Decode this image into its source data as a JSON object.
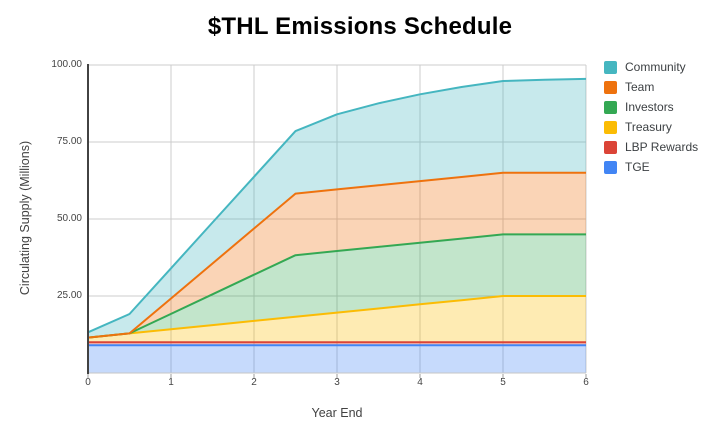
{
  "title": "$THL Emissions Schedule",
  "axes": {
    "y": {
      "title": "Circulating Supply (Millions)",
      "ticks": [
        {
          "label": "100.00",
          "value": 100
        },
        {
          "label": "75.00",
          "value": 75
        },
        {
          "label": "50.00",
          "value": 50
        },
        {
          "label": "25.00",
          "value": 25
        }
      ]
    },
    "x": {
      "title": "Year End",
      "ticks": [
        {
          "label": "0",
          "value": 0
        },
        {
          "label": "1",
          "value": 1
        },
        {
          "label": "2",
          "value": 2
        },
        {
          "label": "3",
          "value": 3
        },
        {
          "label": "4",
          "value": 4
        },
        {
          "label": "5",
          "value": 5
        },
        {
          "label": "6",
          "value": 6
        }
      ]
    }
  },
  "legend": {
    "position": "right",
    "items": [
      {
        "label": "Community",
        "color": "#45B6C0"
      },
      {
        "label": "Team",
        "color": "#EE720E"
      },
      {
        "label": "Investors",
        "color": "#34A853"
      },
      {
        "label": "Treasury",
        "color": "#FBBC04"
      },
      {
        "label": "LBP Rewards",
        "color": "#DB4437"
      },
      {
        "label": "TGE",
        "color": "#4285F4"
      }
    ]
  },
  "chart_data": {
    "type": "area",
    "stacked": true,
    "title": "$THL Emissions Schedule",
    "xlabel": "Year End",
    "ylabel": "Circulating Supply (Millions)",
    "xlim": [
      0,
      6
    ],
    "ylim": [
      0,
      100
    ],
    "grid": true,
    "legend_position": "right",
    "x": [
      0,
      0.5,
      1,
      1.5,
      2,
      2.5,
      3,
      3.5,
      4,
      4.5,
      5,
      5.5,
      6
    ],
    "series": [
      {
        "name": "TGE",
        "color": "#4285F4",
        "values": [
          9,
          9,
          9,
          9,
          9,
          9,
          9,
          9,
          9,
          9,
          9,
          9,
          9
        ]
      },
      {
        "name": "LBP Rewards",
        "color": "#DB4437",
        "values": [
          1,
          1,
          1,
          1,
          1,
          1,
          1,
          1,
          1,
          1,
          1,
          1,
          1
        ]
      },
      {
        "name": "Treasury",
        "color": "#FBBC04",
        "values": [
          1.5,
          2.85,
          4.2,
          5.55,
          6.9,
          8.25,
          9.6,
          10.95,
          12.3,
          13.65,
          15,
          15,
          15
        ]
      },
      {
        "name": "Investors",
        "color": "#34A853",
        "values": [
          0,
          0,
          5,
          10,
          15,
          20,
          20,
          20,
          20,
          20,
          20,
          20,
          20
        ]
      },
      {
        "name": "Team",
        "color": "#EE720E",
        "values": [
          0,
          0,
          5,
          10,
          15,
          20,
          20,
          20,
          20,
          20,
          20,
          20,
          20
        ]
      },
      {
        "name": "Community",
        "color": "#45B6C0",
        "values": [
          1.7,
          6.3,
          9.8,
          13.3,
          16.8,
          20.3,
          24.4,
          26.6,
          28.2,
          29.2,
          29.8,
          30.2,
          30.5
        ]
      }
    ]
  },
  "style_colors": {
    "grid": "#CCCCCC",
    "y_axis_line": "#424242",
    "baseline": "#C6C6C6",
    "tick_mark": "#9E9E9E",
    "background": "#FFFFFF"
  }
}
